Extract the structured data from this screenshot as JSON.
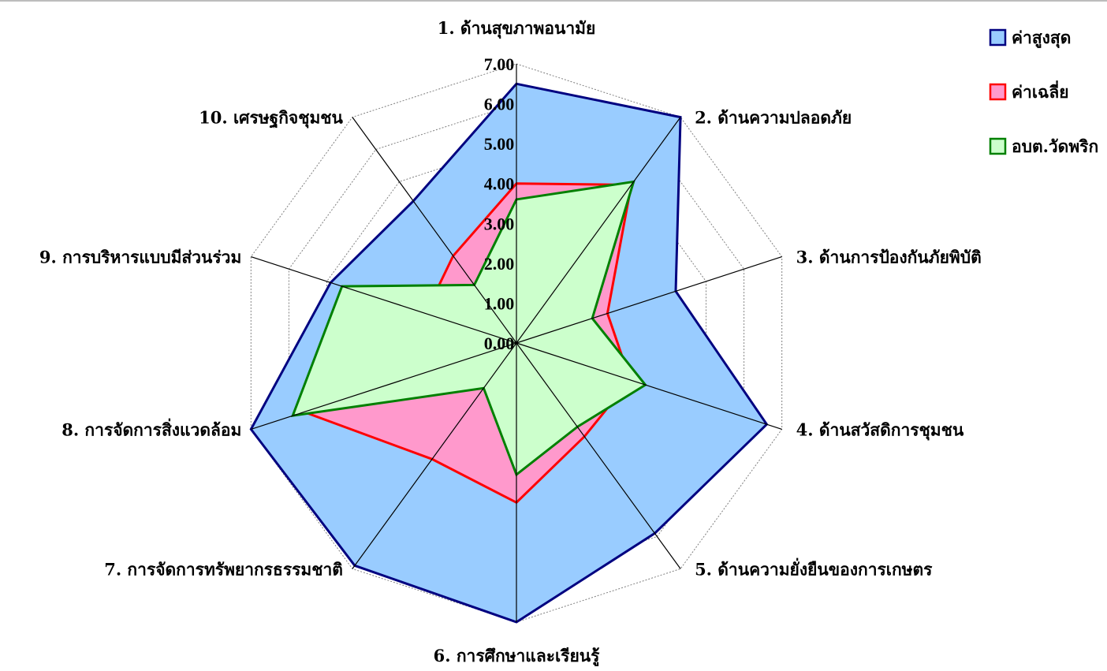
{
  "chart_data": {
    "type": "radar",
    "categories": [
      "1. ด้านสุขภาพอนามัย",
      "2. ด้านความปลอดภัย",
      "3. ด้านการป้องกันภัยพิบัติ",
      "4. ด้านสวัสดิการชุมชน",
      "5. ด้านความยั่งยืนของการเกษตร",
      "6. การศึกษาและเรียนรู้",
      "7. การจัดการทรัพยากรธรรมชาติ",
      "8. การจัดการสิ่งแวดล้อม",
      "9. การบริหารแบบมีส่วนร่วม",
      "10. เศรษฐกิจชุมชน"
    ],
    "series": [
      {
        "name": "ค่าสูงสุด",
        "values": [
          6.5,
          7.0,
          4.2,
          6.6,
          5.9,
          7.0,
          6.9,
          7.0,
          4.9,
          4.4
        ],
        "fill": "#99ccff",
        "stroke": "#000080"
      },
      {
        "name": "ค่าเฉลี่ย",
        "values": [
          4.0,
          4.9,
          2.4,
          3.0,
          2.9,
          4.0,
          3.6,
          5.6,
          2.4,
          2.7
        ],
        "fill": "#ff99cc",
        "stroke": "#ff0000"
      },
      {
        "name": "อบต.วัดพริก",
        "values": [
          3.6,
          5.0,
          2.0,
          3.4,
          2.6,
          3.3,
          1.4,
          5.9,
          4.6,
          1.8
        ],
        "fill": "#ccffcc",
        "stroke": "#008000"
      }
    ],
    "ticks": [
      "0.00",
      "1.00",
      "2.00",
      "3.00",
      "4.00",
      "5.00",
      "6.00",
      "7.00"
    ],
    "rlim": [
      0,
      7
    ],
    "grid": true,
    "legend_position": "top-right",
    "title": "",
    "gridline_color": "#808080",
    "spoke_color": "#000000"
  }
}
